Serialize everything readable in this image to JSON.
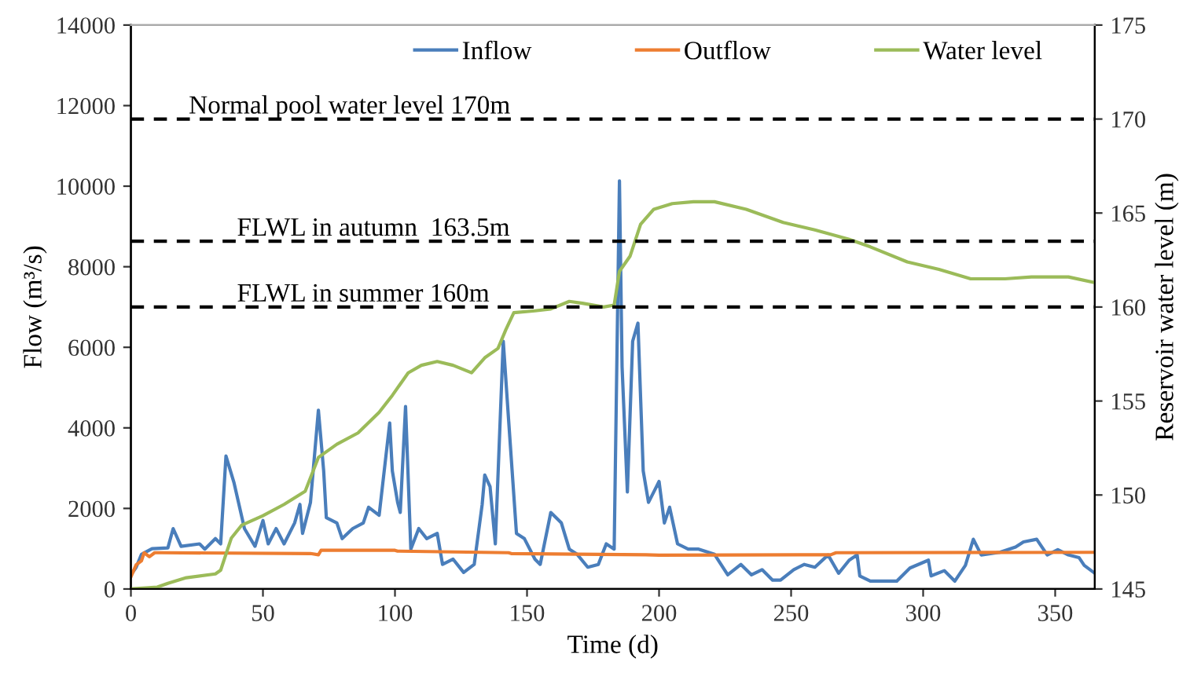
{
  "chart_data": {
    "type": "line",
    "xlabel": "Time (d)",
    "ylabel": "Flow (m³/s)",
    "y2label": "Reservoir water level (m)",
    "xlim": [
      0,
      365
    ],
    "xticks": [
      0,
      50,
      100,
      150,
      200,
      250,
      300,
      350
    ],
    "ylim": [
      0,
      14000
    ],
    "yticks": [
      0,
      2000,
      4000,
      6000,
      8000,
      10000,
      12000,
      14000
    ],
    "y2lim": [
      145,
      175
    ],
    "y2ticks": [
      145,
      150,
      155,
      160,
      165,
      170,
      175
    ],
    "grid": false,
    "legend": "top",
    "marker": "none",
    "line_style": "solid",
    "series": [
      {
        "name": "Inflow",
        "color": "#4a7ebb",
        "x": [
          0,
          2,
          4,
          8,
          14,
          16,
          19,
          26,
          28,
          32,
          34,
          36,
          39,
          43,
          47,
          50,
          52,
          55,
          58,
          62,
          64,
          65,
          68,
          71,
          73,
          74,
          78,
          80,
          84,
          88,
          90,
          94,
          98,
          99,
          101,
          102,
          104,
          106,
          109,
          112,
          116,
          118,
          122,
          126,
          130,
          133,
          134,
          136,
          138,
          141,
          143,
          146,
          149,
          153,
          155,
          159,
          163,
          166,
          169,
          173,
          177,
          180,
          183,
          185,
          186,
          188,
          190,
          192,
          194,
          196,
          198,
          200,
          202,
          204,
          207,
          211,
          215,
          221,
          226,
          231,
          235,
          239,
          243,
          246,
          251,
          255,
          259,
          264,
          268,
          272,
          275,
          276,
          280,
          290,
          295,
          302,
          303,
          308,
          312,
          316,
          319,
          322,
          329,
          335,
          338,
          343,
          347,
          351,
          355,
          359,
          361,
          365
        ],
        "values": [
          350,
          540,
          860,
          1000,
          1020,
          1500,
          1060,
          1120,
          990,
          1250,
          1120,
          3300,
          2650,
          1500,
          1060,
          1700,
          1120,
          1500,
          1120,
          1640,
          2100,
          1380,
          2150,
          4440,
          2930,
          1770,
          1640,
          1250,
          1500,
          1640,
          2030,
          1830,
          4120,
          2930,
          2150,
          1900,
          4530,
          990,
          1500,
          1250,
          1380,
          610,
          740,
          410,
          610,
          2090,
          2830,
          2540,
          1120,
          6150,
          4220,
          1380,
          1250,
          740,
          610,
          1900,
          1640,
          990,
          860,
          540,
          610,
          1120,
          990,
          10130,
          5510,
          2410,
          6150,
          6600,
          2930,
          2150,
          2410,
          2670,
          1640,
          2030,
          1120,
          990,
          990,
          860,
          350,
          610,
          350,
          480,
          220,
          220,
          480,
          610,
          540,
          845,
          390,
          715,
          845,
          325,
          195,
          195,
          520,
          715,
          325,
          455,
          195,
          585,
          1235,
          845,
          910,
          1040,
          1170,
          1235,
          845,
          975,
          845,
          780,
          585,
          390
        ]
      },
      {
        "name": "Outflow",
        "color": "#ed7d31",
        "x": [
          0,
          2,
          4,
          5,
          7,
          9,
          12,
          68,
          71,
          72,
          100,
          101,
          143,
          144,
          195,
          200,
          265,
          267,
          365
        ],
        "values": [
          300,
          600,
          700,
          900,
          800,
          900,
          900,
          880,
          850,
          960,
          960,
          940,
          900,
          880,
          850,
          840,
          850,
          900,
          910
        ]
      },
      {
        "name": "Water level",
        "color": "#9bbb59",
        "axis": "y2",
        "x": [
          0,
          10,
          14,
          21,
          32,
          34,
          38,
          42,
          50,
          58,
          66,
          71,
          78,
          86,
          94,
          99,
          105,
          110,
          116,
          122,
          129,
          134,
          139,
          142,
          145,
          153,
          159,
          166,
          171,
          179,
          183,
          185,
          189,
          193,
          198,
          205,
          213,
          221,
          233,
          247,
          259,
          272,
          280,
          294,
          306,
          318,
          331,
          341,
          355,
          365
        ],
        "values": [
          145,
          145.1,
          145.3,
          145.6,
          145.8,
          146,
          147.7,
          148.4,
          148.9,
          149.5,
          150.2,
          152,
          152.7,
          153.3,
          154.4,
          155.3,
          156.5,
          156.9,
          157.1,
          156.9,
          156.5,
          157.3,
          157.8,
          158.8,
          159.7,
          159.8,
          159.9,
          160.3,
          160.2,
          160,
          160.1,
          161.9,
          162.7,
          164.4,
          165.2,
          165.5,
          165.6,
          165.6,
          165.2,
          164.5,
          164.1,
          163.6,
          163.2,
          162.4,
          162,
          161.5,
          161.5,
          161.6,
          161.6,
          161.3
        ]
      }
    ],
    "ref_lines": [
      {
        "axis": "y2",
        "value": 170,
        "label": "Normal pool water level 170m",
        "color": "#000000",
        "line_style": "dashed"
      },
      {
        "axis": "y2",
        "value": 163.5,
        "label": "FLWL in autumn  163.5m",
        "color": "#000000",
        "line_style": "dashed"
      },
      {
        "axis": "y2",
        "value": 160,
        "label": "FLWL in summer 160m",
        "color": "#000000",
        "line_style": "dashed"
      }
    ]
  }
}
